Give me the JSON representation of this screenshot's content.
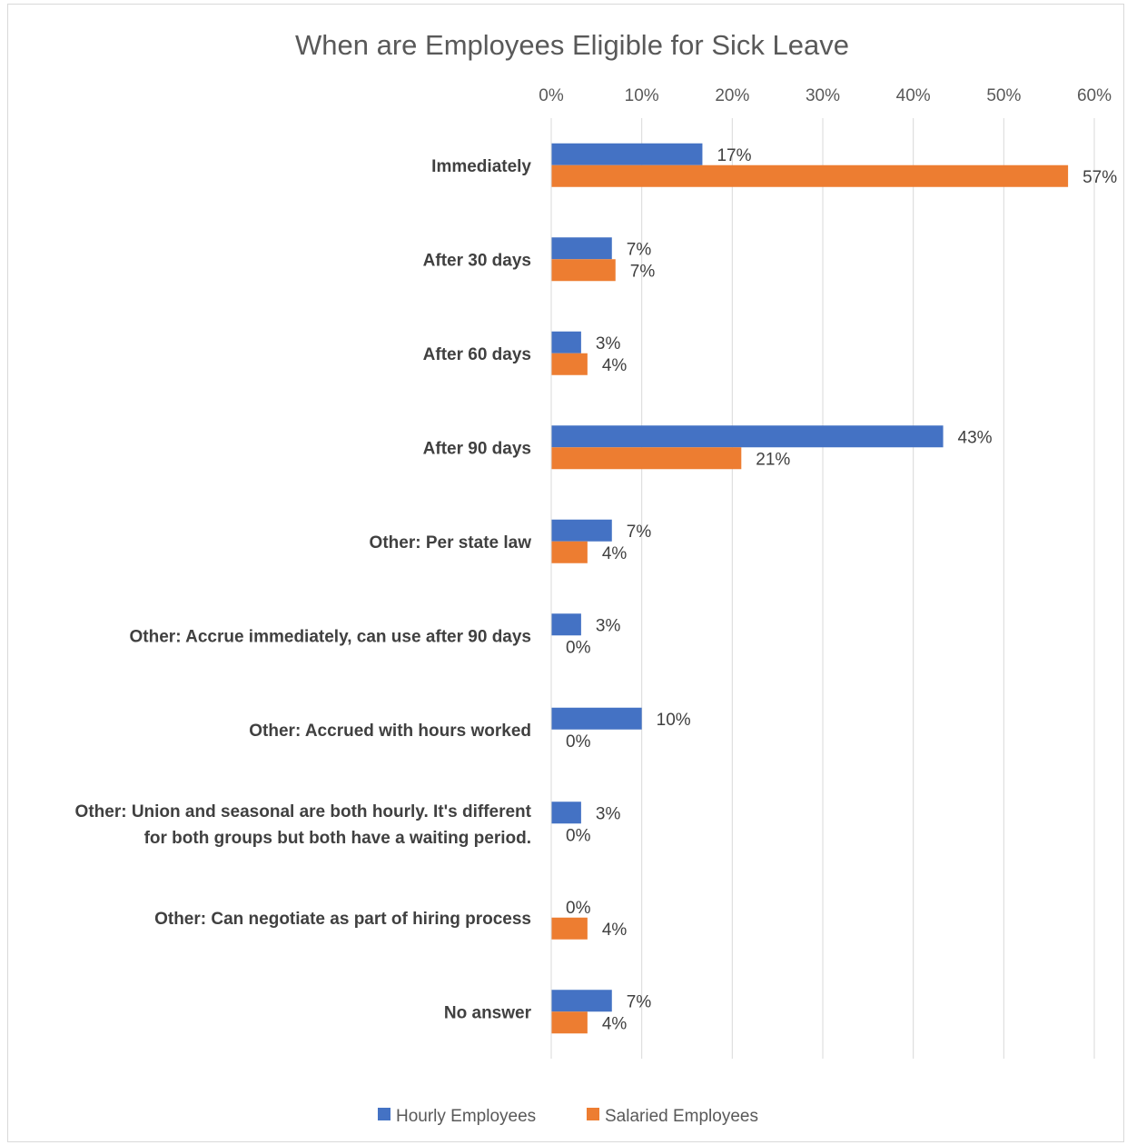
{
  "chart_data": {
    "type": "bar",
    "orientation": "horizontal",
    "title": "When are Employees Eligible for Sick Leave",
    "categories": [
      [
        "Immediately"
      ],
      [
        "After 30 days"
      ],
      [
        "After 60 days"
      ],
      [
        "After 90 days"
      ],
      [
        "Other: Per state law"
      ],
      [
        "Other: Accrue immediately, can use after 90 days"
      ],
      [
        "Other: Accrued with hours worked"
      ],
      [
        "Other: Union and seasonal are both hourly. It's different",
        "for both groups but both have a waiting period."
      ],
      [
        "Other: Can negotiate as part of hiring process"
      ],
      [
        "No answer"
      ]
    ],
    "series": [
      {
        "name": "Hourly Employees",
        "color": "#4472C4",
        "values": [
          16.7,
          6.7,
          3.3,
          43.3,
          6.7,
          3.3,
          10.0,
          3.3,
          0,
          6.7
        ],
        "labels": [
          "17%",
          "7%",
          "3%",
          "43%",
          "7%",
          "3%",
          "10%",
          "3%",
          "0%",
          "7%"
        ]
      },
      {
        "name": "Salaried Employees",
        "color": "#ED7D31",
        "values": [
          57.1,
          7.1,
          4.0,
          21.0,
          4.0,
          0,
          0,
          0,
          4.0,
          4.0
        ],
        "labels": [
          "57%",
          "7%",
          "4%",
          "21%",
          "4%",
          "0%",
          "0%",
          "0%",
          "4%",
          "4%"
        ]
      }
    ],
    "x_ticks": [
      "0%",
      "10%",
      "20%",
      "30%",
      "40%",
      "50%",
      "60%"
    ],
    "xlim": [
      0,
      60
    ],
    "grid": true,
    "x_axis_position": "top",
    "legend_position": "bottom"
  }
}
